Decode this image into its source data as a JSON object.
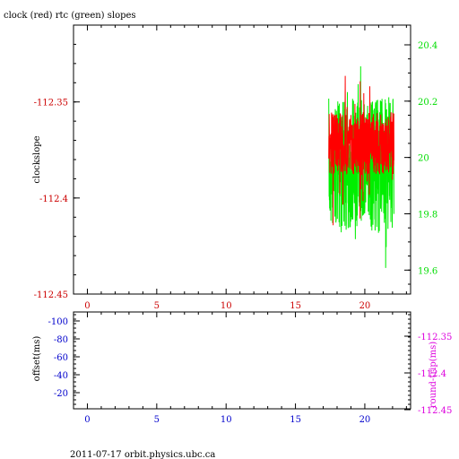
{
  "chart_data": [
    {
      "type": "line",
      "title": "clock (red) rtc (green) slopes",
      "xlabel": "",
      "ylabel": "clockslope",
      "x_ticks": [
        "0",
        "5",
        "10",
        "15",
        "20"
      ],
      "xlim": [
        -1,
        23.3
      ],
      "y_left": {
        "ticks": [
          "-112.35",
          "-112.4",
          "-112.45"
        ],
        "ylim": [
          -112.45,
          -112.31
        ],
        "color": "#cc0000"
      },
      "y_right": {
        "ticks": [
          "20.4",
          "20.2",
          "20",
          "19.8",
          "19.6"
        ],
        "ylim": [
          19.515,
          20.47
        ],
        "color": "#00dd00"
      },
      "series": [
        {
          "name": "clock",
          "color": "#ff0000",
          "axis": "left",
          "x_range": [
            17.4,
            22.1
          ]
        },
        {
          "name": "rtc",
          "color": "#00ee00",
          "axis": "right",
          "x_range": [
            17.4,
            22.1
          ]
        }
      ]
    },
    {
      "type": "line",
      "title": "",
      "xlabel": "",
      "ylabel": "offset(ms)",
      "y_right_label": "round-trip(ms)",
      "x_ticks": [
        "0",
        "5",
        "10",
        "15",
        "20"
      ],
      "xlim": [
        -1,
        23.3
      ],
      "y_left": {
        "ticks": [
          "-100",
          "-80",
          "-60",
          "-40",
          "-20"
        ],
        "color": "#0000cc"
      },
      "y_right": {
        "ticks": [
          "-112.35",
          "-112.4",
          "-112.45"
        ],
        "color": "#dd00dd"
      },
      "series": []
    }
  ],
  "footer": "2011-07-17 orbit.physics.ubc.ca"
}
